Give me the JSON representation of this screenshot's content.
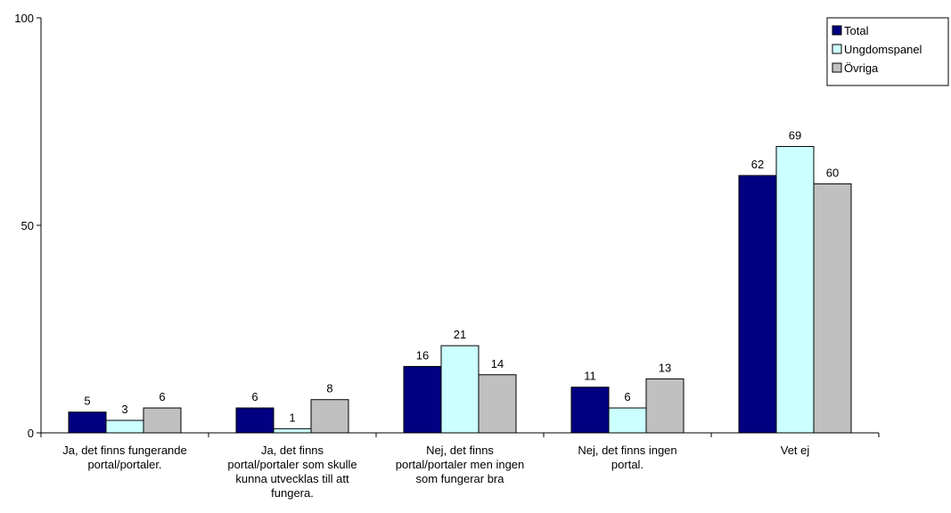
{
  "chart_data": {
    "type": "bar",
    "title": "",
    "xlabel": "",
    "ylabel": "",
    "ylim": [
      0,
      100
    ],
    "yticks": [
      0,
      50,
      100
    ],
    "grid": false,
    "legend_position": "top-right",
    "categories": [
      [
        "Ja, det finns fungerande",
        "portal/portaler."
      ],
      [
        "Ja, det finns",
        "portal/portaler som skulle",
        "kunna utvecklas till att",
        "fungera."
      ],
      [
        "Nej, det finns",
        "portal/portaler men ingen",
        "som fungerar bra"
      ],
      [
        "Nej, det finns ingen",
        "portal."
      ],
      [
        "Vet ej"
      ]
    ],
    "series": [
      {
        "name": "Total",
        "color": "#000080",
        "values": [
          5,
          6,
          16,
          11,
          62
        ]
      },
      {
        "name": "Ungdomspanel",
        "color": "#ccffff",
        "values": [
          3,
          1,
          21,
          6,
          69
        ]
      },
      {
        "name": "Övriga",
        "color": "#c0c0c0",
        "values": [
          6,
          8,
          14,
          13,
          60
        ]
      }
    ]
  }
}
